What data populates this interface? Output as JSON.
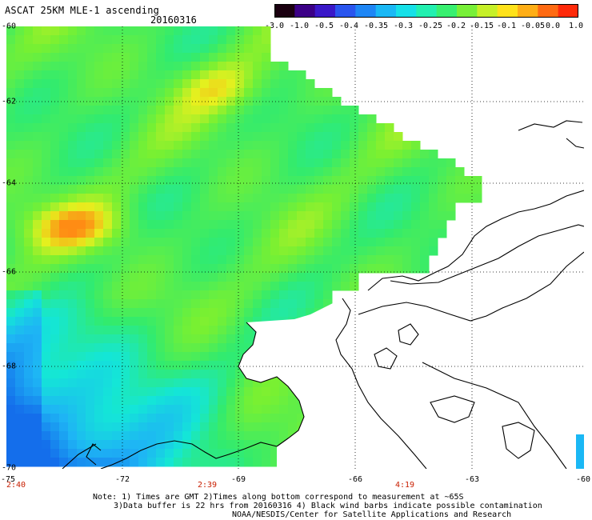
{
  "header": {
    "title": "ASCAT 25KM MLE-1 ascending",
    "date": "20160316"
  },
  "colorbar": {
    "labels": [
      "-3.0",
      "-1.0",
      "-0.5",
      "-0.4",
      "-0.35",
      "-0.3",
      "-0.25",
      "-0.2",
      "-0.15",
      "-0.1",
      "-0.05",
      "0.0",
      "1.0"
    ],
    "colors": [
      "#1a0010",
      "#3b0086",
      "#3a18c8",
      "#2a55ee",
      "#1e86f5",
      "#1ab8f5",
      "#16e0e8",
      "#22f0b0",
      "#38f070",
      "#78f038",
      "#c6f028",
      "#ffe21a",
      "#ffae16",
      "#ff6a12",
      "#ff2a0a"
    ]
  },
  "axes": {
    "lat_labels": [
      "-60",
      "-62",
      "-64",
      "-66",
      "-68",
      "-70"
    ],
    "lon_labels": [
      "-75",
      "-72",
      "-69",
      "-66",
      "-63",
      "-60"
    ],
    "time_labels": [
      "2:40",
      "2:39",
      "4:19"
    ]
  },
  "notes": [
    "Note: 1) Times are GMT 2)Times along bottom correspond to measurement at ~65S",
    "3)Data buffer is 22 hrs from 20160316 4) Black wind barbs indicate possible contamination",
    "NOAA/NESDIS/Center for Satellite Applications and Research"
  ]
}
